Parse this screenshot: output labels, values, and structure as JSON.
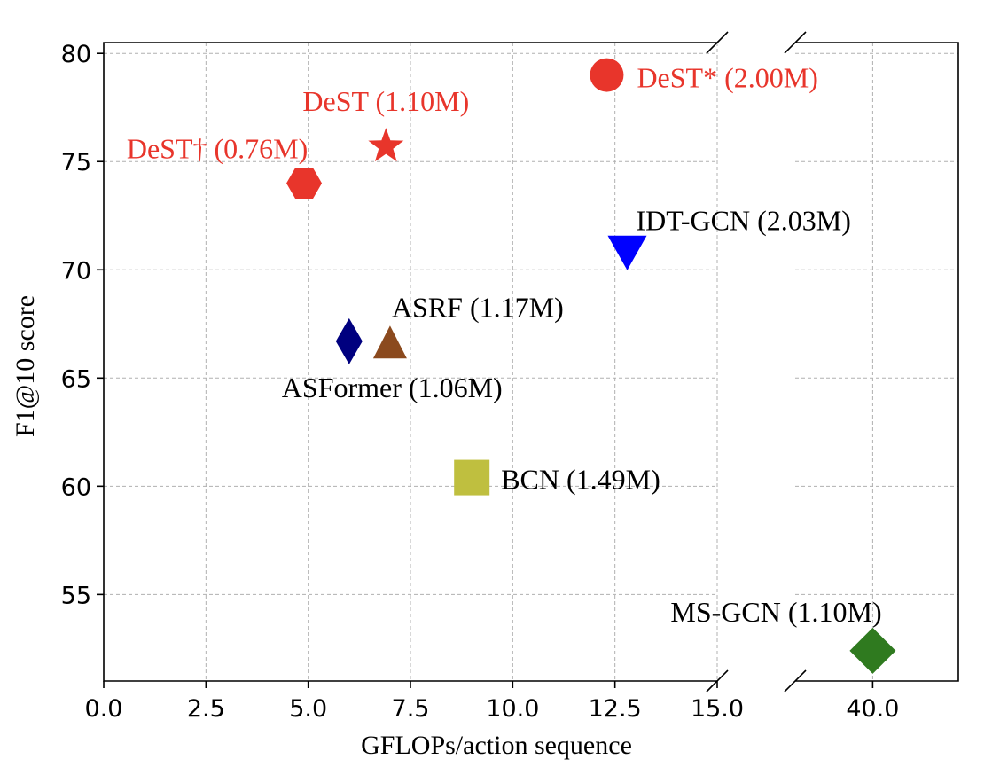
{
  "chart_data": {
    "type": "scatter",
    "xlabel": "GFLOPs/action sequence",
    "ylabel": "F1@10 score",
    "ylim": [
      51,
      80.5
    ],
    "y_ticks": [
      55,
      60,
      65,
      70,
      75,
      80
    ],
    "broken_x_axis": true,
    "x_segments": [
      {
        "range": [
          0,
          15
        ],
        "ticks": [
          "0.0",
          "2.5",
          "5.0",
          "7.5",
          "10.0",
          "12.5",
          "15.0"
        ]
      },
      {
        "range": [
          38.1,
          42.1
        ],
        "ticks": [
          "40.0"
        ]
      }
    ],
    "grid": true,
    "points": [
      {
        "label": "DeST* (2.00M)",
        "x": 12.3,
        "y": 79.0,
        "marker": "circle",
        "color": "#e8352b",
        "label_color": "#e8352b"
      },
      {
        "label": "DeST (1.10M)",
        "x": 6.9,
        "y": 75.7,
        "marker": "star",
        "color": "#e8352b",
        "label_color": "#e8352b"
      },
      {
        "label": "DeST† (0.76M)",
        "x": 4.9,
        "y": 74.0,
        "marker": "hexagon",
        "color": "#e8352b",
        "label_color": "#e8352b"
      },
      {
        "label": "IDT-GCN (2.03M)",
        "x": 12.8,
        "y": 70.8,
        "marker": "triangle-down",
        "color": "#0000ff",
        "label_color": "#000000"
      },
      {
        "label": "ASRF (1.17M)",
        "x": 7.0,
        "y": 66.6,
        "marker": "triangle-up",
        "color": "#8b4a1e",
        "label_color": "#000000"
      },
      {
        "label": "ASFormer (1.06M)",
        "x": 6.0,
        "y": 66.7,
        "marker": "diamond-thin",
        "color": "#00007f",
        "label_color": "#000000"
      },
      {
        "label": "BCN (1.49M)",
        "x": 9.0,
        "y": 60.4,
        "marker": "square",
        "color": "#bfbf3f",
        "label_color": "#000000"
      },
      {
        "label": "MS-GCN (1.10M)",
        "x": 40.0,
        "y": 52.4,
        "marker": "diamond",
        "color": "#2f7a1f",
        "label_color": "#000000"
      }
    ]
  }
}
